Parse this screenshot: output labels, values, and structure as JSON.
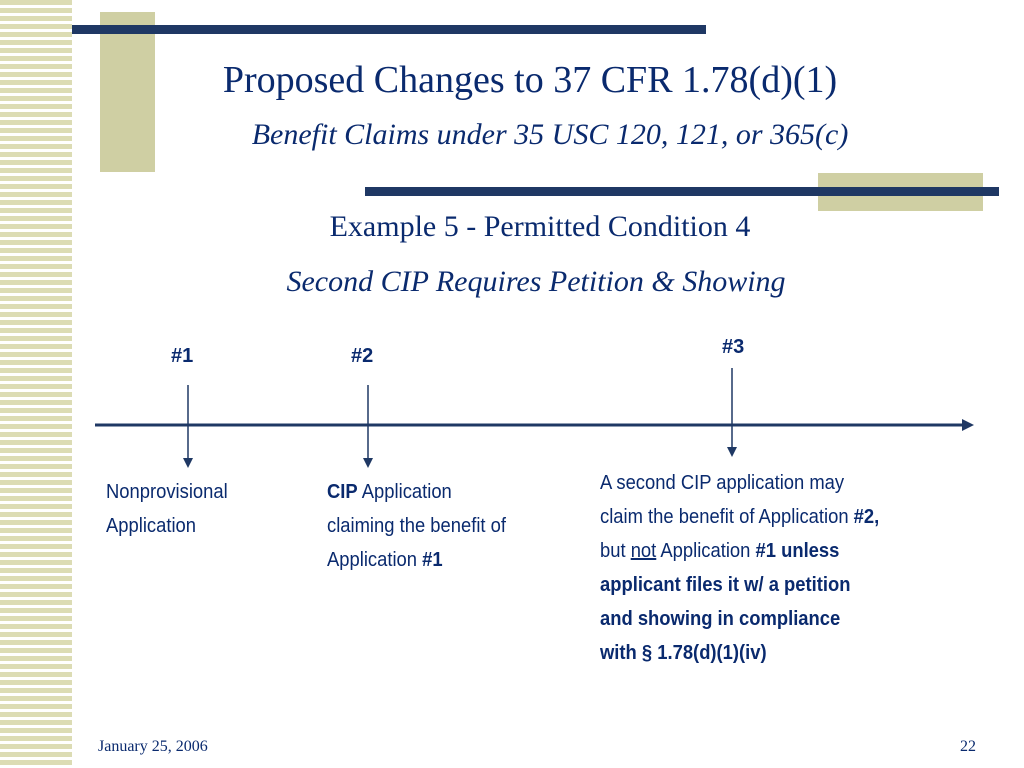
{
  "slide": {
    "title": "Proposed Changes to 37 CFR 1.78(d)(1)",
    "subtitle": "Benefit Claims under 35 USC 120, 121, or 365(c)",
    "example_heading": "Example 5 - Permitted Condition 4",
    "example_subheading": "Second CIP Requires Petition & Showing"
  },
  "timeline": {
    "markers": [
      {
        "label": "#1"
      },
      {
        "label": "#2"
      },
      {
        "label": "#3"
      }
    ],
    "descriptions": {
      "app1": {
        "line1": "Nonprovisional",
        "line2": "Application"
      },
      "app2": {
        "cip": "CIP",
        "line1_rest": " Application",
        "line2": "claiming the benefit of",
        "line3_text": "Application ",
        "line3_ref": "#1"
      },
      "app3": {
        "line1": "A second CIP application may",
        "line2_text": "claim the benefit of Application ",
        "line2_ref": "#2,",
        "line3_but": "but ",
        "line3_not": "not",
        "line3_text": " Application ",
        "line3_ref": "#1 unless",
        "line4": "applicant files it w/ a petition",
        "line5": "and showing in compliance",
        "line6": "with § 1.78(d)(1)(iv)"
      }
    }
  },
  "footer": {
    "date": "January 25, 2006",
    "page_number": "22"
  },
  "colors": {
    "text": "#0a2a6e",
    "bar": "#1f3864",
    "accent": "#cfcfa3"
  }
}
